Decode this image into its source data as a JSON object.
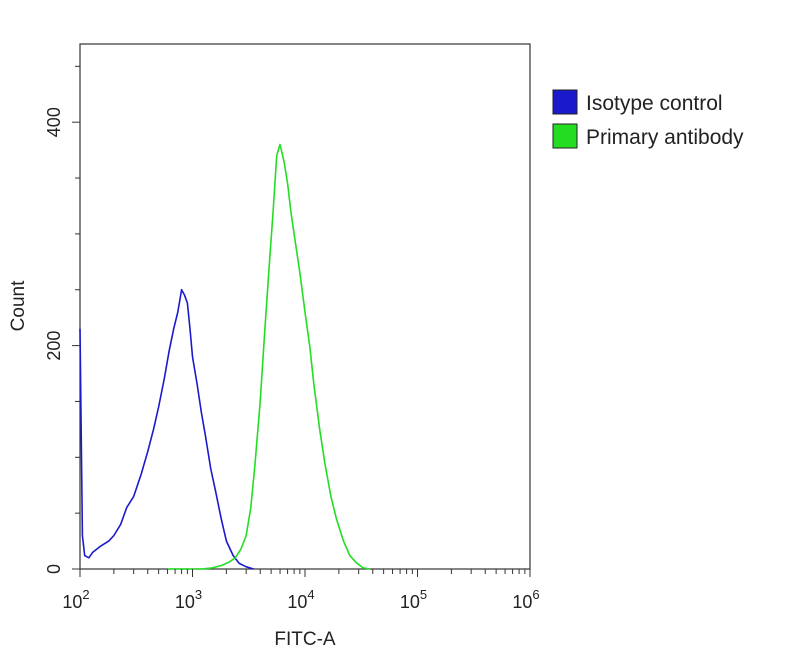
{
  "chart_data": {
    "type": "line",
    "title": "",
    "xlabel": "FITC-A",
    "ylabel": "Count",
    "x_scale": "log",
    "xlim": [
      100,
      1000000
    ],
    "ylim": [
      0,
      470
    ],
    "x_ticks": [
      {
        "value": 100,
        "base": "10",
        "exp": "2"
      },
      {
        "value": 1000,
        "base": "10",
        "exp": "3"
      },
      {
        "value": 10000,
        "base": "10",
        "exp": "4"
      },
      {
        "value": 100000,
        "base": "10",
        "exp": "5"
      },
      {
        "value": 1000000,
        "base": "10",
        "exp": "6"
      }
    ],
    "y_ticks": [
      0,
      200,
      400
    ],
    "grid": false,
    "legend_position": "top-right-outside",
    "series": [
      {
        "name": "Isotype control",
        "color": "#1a1acc",
        "x": [
          100,
          105,
          110,
          120,
          130,
          150,
          180,
          200,
          230,
          260,
          300,
          350,
          400,
          450,
          500,
          560,
          620,
          680,
          740,
          800,
          850,
          900,
          950,
          1000,
          1100,
          1200,
          1300,
          1450,
          1600,
          1800,
          2000,
          2300,
          2600,
          3000,
          3500
        ],
        "y": [
          215,
          30,
          12,
          10,
          15,
          20,
          25,
          30,
          40,
          55,
          65,
          85,
          105,
          125,
          145,
          170,
          195,
          215,
          230,
          250,
          245,
          238,
          215,
          190,
          165,
          140,
          120,
          90,
          70,
          45,
          25,
          12,
          5,
          2,
          0
        ]
      },
      {
        "name": "Primary antibody",
        "color": "#22dd22",
        "x": [
          600,
          900,
          1200,
          1500,
          1800,
          2100,
          2400,
          2700,
          3000,
          3300,
          3600,
          4000,
          4400,
          4800,
          5200,
          5600,
          6000,
          6500,
          7000,
          7500,
          8000,
          9000,
          10000,
          11000,
          12000,
          13500,
          15000,
          17000,
          19000,
          22000,
          25000,
          29000,
          33000,
          38000
        ],
        "y": [
          0,
          0,
          0,
          1,
          3,
          6,
          10,
          18,
          30,
          55,
          95,
          150,
          215,
          270,
          320,
          370,
          380,
          365,
          345,
          320,
          300,
          265,
          230,
          200,
          165,
          125,
          95,
          65,
          45,
          25,
          12,
          5,
          1,
          0
        ]
      }
    ]
  }
}
